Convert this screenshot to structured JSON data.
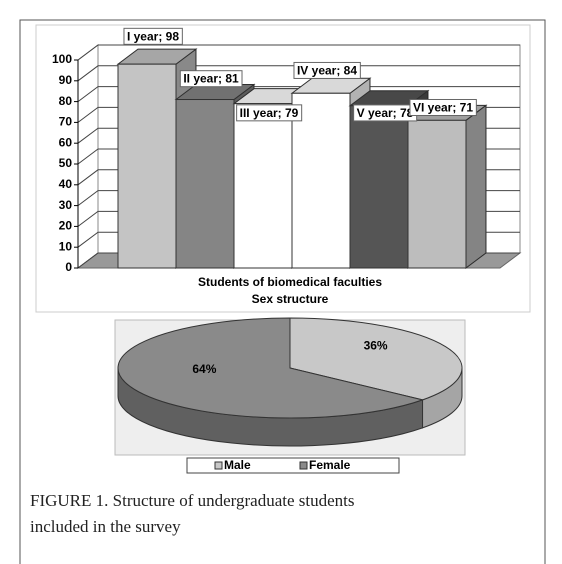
{
  "chart_data": [
    {
      "type": "bar3d",
      "xlabel": "Students of biomedical faculties",
      "values": [
        98,
        81,
        79,
        84,
        78,
        71
      ],
      "value_labels": [
        "I year; 98",
        "II year; 81",
        "III year; 79",
        "IV year; 84",
        "V year; 78",
        "VI year; 71"
      ],
      "colors": [
        "#c4c4c4",
        "#858585",
        "#ffffff",
        "#ffffff",
        "#555555",
        "#bdbdbd"
      ],
      "ylim": [
        0,
        100
      ],
      "yticks": [
        0,
        10,
        20,
        30,
        40,
        50,
        60,
        70,
        80,
        90,
        100
      ],
      "grid": true
    },
    {
      "type": "pie3d",
      "title": "Sex structure",
      "categories": [
        "Male",
        "Female"
      ],
      "values": [
        36,
        64
      ],
      "value_labels": [
        "36%",
        "64%"
      ],
      "colors": [
        "#c8c8c8",
        "#8a8a8a"
      ],
      "legend": "bottom"
    }
  ],
  "caption": "FIGURE 1.  Structure of undergraduate students included in the survey"
}
